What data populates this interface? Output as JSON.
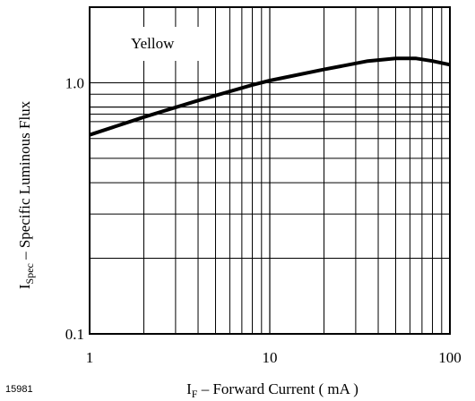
{
  "chart_data": {
    "type": "line",
    "title": "",
    "annotation": "Yellow",
    "figure_id": "15981",
    "xlabel": {
      "main": "I",
      "sub": "F",
      "rest": " – Forward Current ( mA )"
    },
    "ylabel": {
      "main": "I",
      "sub": "Spec",
      "rest": " – Specific Luminous Flux"
    },
    "xscale": "log",
    "yscale": "log",
    "xlim": [
      1,
      100
    ],
    "ylim": [
      0.1,
      2.0
    ],
    "grid": true,
    "x_tick_labels": [
      "1",
      "10",
      "100"
    ],
    "x_tick_values": [
      1,
      10,
      100
    ],
    "y_tick_labels": [
      "0.1",
      "1.0"
    ],
    "y_tick_values": [
      0.1,
      1.0
    ],
    "y_extra_gridlines": [
      0.8,
      0.75
    ],
    "series": [
      {
        "x": [
          1,
          2,
          4,
          8,
          10,
          20,
          35,
          50,
          65,
          80,
          100
        ],
        "y": [
          0.62,
          0.73,
          0.85,
          0.98,
          1.02,
          1.13,
          1.22,
          1.25,
          1.25,
          1.22,
          1.18
        ]
      }
    ]
  }
}
